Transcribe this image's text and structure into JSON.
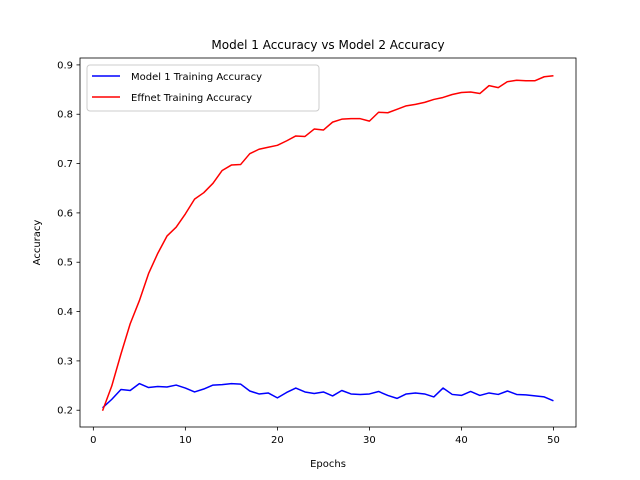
{
  "chart_data": {
    "type": "line",
    "title": "Model 1 Accuracy vs Model 2 Accuracy",
    "xlabel": "Epochs",
    "ylabel": "Accuracy",
    "xlim": [
      -1.45,
      52.45
    ],
    "ylim": [
      0.166,
      0.914
    ],
    "xticks": [
      0,
      10,
      20,
      30,
      40,
      50
    ],
    "yticks": [
      0.2,
      0.3,
      0.4,
      0.5,
      0.6,
      0.7,
      0.8,
      0.9
    ],
    "grid": false,
    "legend_position": "upper-left",
    "x": [
      1,
      2,
      3,
      4,
      5,
      6,
      7,
      8,
      9,
      10,
      11,
      12,
      13,
      14,
      15,
      16,
      17,
      18,
      19,
      20,
      21,
      22,
      23,
      24,
      25,
      26,
      27,
      28,
      29,
      30,
      31,
      32,
      33,
      34,
      35,
      36,
      37,
      38,
      39,
      40,
      41,
      42,
      43,
      44,
      45,
      46,
      47,
      48,
      49,
      50
    ],
    "series": [
      {
        "name": "Model 1 Training Accuracy",
        "color": "#0000ff",
        "values": [
          0.205,
          0.222,
          0.242,
          0.24,
          0.254,
          0.246,
          0.248,
          0.247,
          0.251,
          0.245,
          0.237,
          0.243,
          0.251,
          0.252,
          0.254,
          0.253,
          0.239,
          0.233,
          0.235,
          0.225,
          0.236,
          0.245,
          0.237,
          0.234,
          0.237,
          0.229,
          0.24,
          0.233,
          0.232,
          0.233,
          0.238,
          0.23,
          0.224,
          0.233,
          0.235,
          0.233,
          0.227,
          0.245,
          0.232,
          0.23,
          0.238,
          0.23,
          0.235,
          0.232,
          0.239,
          0.232,
          0.231,
          0.229,
          0.227,
          0.219
        ]
      },
      {
        "name": "Effnet Training Accuracy",
        "color": "#ff0000",
        "values": [
          0.199,
          0.249,
          0.314,
          0.375,
          0.422,
          0.477,
          0.518,
          0.553,
          0.571,
          0.598,
          0.628,
          0.641,
          0.66,
          0.686,
          0.697,
          0.698,
          0.72,
          0.729,
          0.733,
          0.737,
          0.746,
          0.756,
          0.755,
          0.77,
          0.768,
          0.784,
          0.79,
          0.791,
          0.791,
          0.786,
          0.804,
          0.803,
          0.81,
          0.817,
          0.82,
          0.824,
          0.83,
          0.834,
          0.84,
          0.844,
          0.845,
          0.842,
          0.858,
          0.854,
          0.866,
          0.869,
          0.868,
          0.868,
          0.876,
          0.878
        ]
      }
    ]
  }
}
